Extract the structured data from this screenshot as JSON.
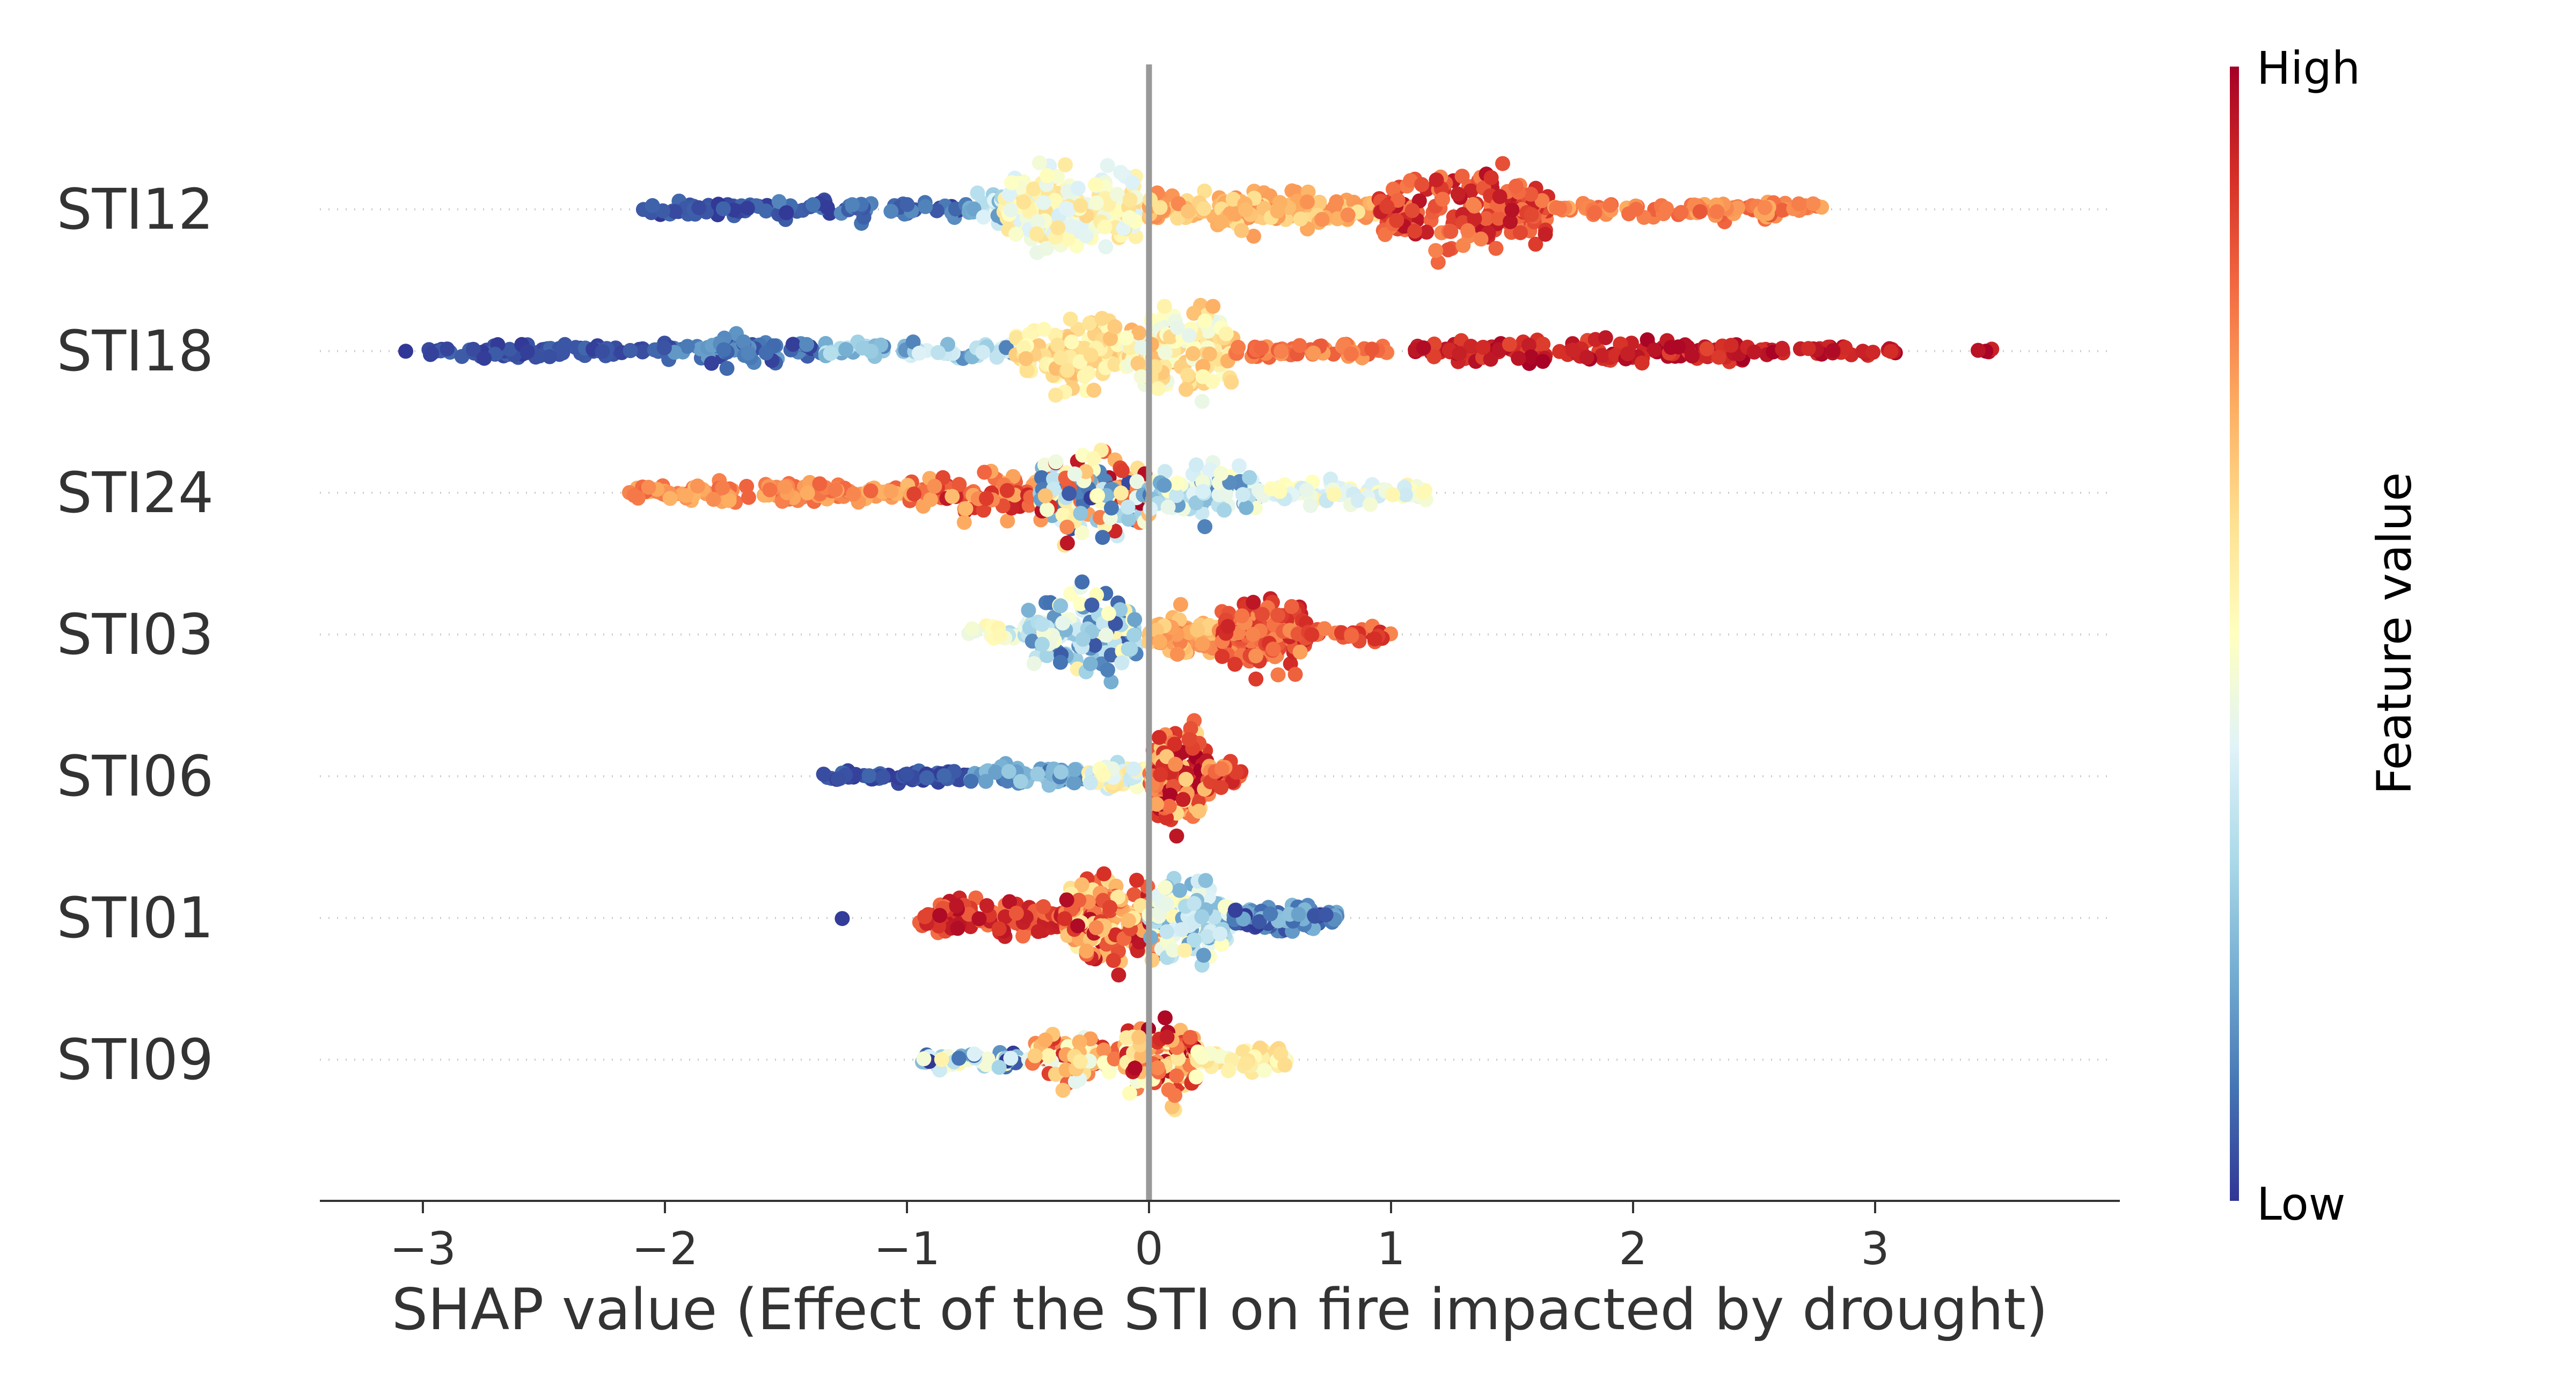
{
  "chart_data": {
    "type": "scatter",
    "subtype": "shap-beeswarm-summary",
    "title": "",
    "xlabel": "SHAP value (Effect of the STI on fire impacted by drought)",
    "ylabel": "",
    "xlim": [
      -3.42,
      3.98
    ],
    "xticks": [
      -3,
      -2,
      -1,
      0,
      1,
      2,
      3
    ],
    "xtick_labels": [
      "−3",
      "−2",
      "−1",
      "0",
      "1",
      "2",
      "3"
    ],
    "grid": "dotted horizontal guide per feature",
    "zero_line": true,
    "colormap": [
      "#313695",
      "#4575b4",
      "#74add1",
      "#abd9e9",
      "#e0f3f8",
      "#ffffbf",
      "#fee090",
      "#fdae61",
      "#f46d43",
      "#d73027",
      "#a50026"
    ],
    "colorbar": {
      "label": "Feature value",
      "high_label": "High",
      "low_label": "Low",
      "placement": "right"
    },
    "features": [
      {
        "name": "STI12",
        "segments": [
          {
            "x": [
              -2.1,
              -1.55
            ],
            "n": 45,
            "v": [
              0.0,
              0.08
            ],
            "w": 0.18
          },
          {
            "x": [
              -1.55,
              -0.75
            ],
            "n": 65,
            "v": [
              0.0,
              0.15
            ],
            "w": 0.26
          },
          {
            "x": [
              -0.75,
              -0.55
            ],
            "n": 30,
            "v": [
              0.15,
              0.45
            ],
            "w": 0.45
          },
          {
            "x": [
              -0.6,
              -0.05
            ],
            "n": 190,
            "v": [
              0.38,
              0.62
            ],
            "w": 0.95
          },
          {
            "x": [
              0.0,
              0.95
            ],
            "n": 170,
            "v": [
              0.58,
              0.76
            ],
            "w": 0.42
          },
          {
            "x": [
              0.95,
              1.65
            ],
            "n": 170,
            "v": [
              0.76,
              0.97
            ],
            "w": 0.88
          },
          {
            "x": [
              1.65,
              2.8
            ],
            "n": 90,
            "v": [
              0.7,
              0.84
            ],
            "w": 0.2
          }
        ]
      },
      {
        "name": "STI18",
        "segments": [
          {
            "x": [
              -3.08,
              -3.05
            ],
            "n": 1,
            "v": [
              0.0,
              0.02
            ],
            "w": 0.05
          },
          {
            "x": [
              -2.98,
              -2.05
            ],
            "n": 85,
            "v": [
              0.0,
              0.08
            ],
            "w": 0.14
          },
          {
            "x": [
              -2.05,
              -1.35
            ],
            "n": 75,
            "v": [
              0.0,
              0.18
            ],
            "w": 0.3
          },
          {
            "x": [
              -1.35,
              -0.55
            ],
            "n": 65,
            "v": [
              0.12,
              0.4
            ],
            "w": 0.24
          },
          {
            "x": [
              -0.55,
              -0.1
            ],
            "n": 110,
            "v": [
              0.5,
              0.68
            ],
            "w": 0.82
          },
          {
            "x": [
              -0.1,
              0.35
            ],
            "n": 140,
            "v": [
              0.42,
              0.7
            ],
            "w": 0.98
          },
          {
            "x": [
              0.35,
              1.0
            ],
            "n": 60,
            "v": [
              0.72,
              0.84
            ],
            "w": 0.18
          },
          {
            "x": [
              1.1,
              2.5
            ],
            "n": 150,
            "v": [
              0.86,
              1.0
            ],
            "w": 0.28
          },
          {
            "x": [
              2.5,
              3.1
            ],
            "n": 35,
            "v": [
              0.9,
              1.0
            ],
            "w": 0.12
          },
          {
            "x": [
              3.42,
              3.66
            ],
            "n": 4,
            "v": [
              0.92,
              1.0
            ],
            "w": 0.04
          }
        ]
      },
      {
        "name": "STI24",
        "segments": [
          {
            "x": [
              -2.15,
              -1.0
            ],
            "n": 130,
            "v": [
              0.68,
              0.82
            ],
            "w": 0.22
          },
          {
            "x": [
              -1.0,
              -0.35
            ],
            "n": 100,
            "v": [
              0.66,
              0.95
            ],
            "w": 0.52
          },
          {
            "x": [
              -0.45,
              0.0
            ],
            "n": 160,
            "v": [
              0.0,
              1.0
            ],
            "w": 0.98
          },
          {
            "x": [
              0.0,
              0.45
            ],
            "n": 80,
            "v": [
              0.1,
              0.5
            ],
            "w": 0.6
          },
          {
            "x": [
              0.45,
              1.15
            ],
            "n": 70,
            "v": [
              0.35,
              0.55
            ],
            "w": 0.25
          }
        ]
      },
      {
        "name": "STI03",
        "segments": [
          {
            "x": [
              -0.75,
              -0.45
            ],
            "n": 25,
            "v": [
              0.3,
              0.55
            ],
            "w": 0.22
          },
          {
            "x": [
              -0.5,
              -0.05
            ],
            "n": 140,
            "v": [
              0.05,
              0.55
            ],
            "w": 0.9
          },
          {
            "x": [
              0.0,
              0.3
            ],
            "n": 80,
            "v": [
              0.62,
              0.78
            ],
            "w": 0.5
          },
          {
            "x": [
              0.3,
              0.65
            ],
            "n": 150,
            "v": [
              0.72,
              0.96
            ],
            "w": 0.82
          },
          {
            "x": [
              0.65,
              1.0
            ],
            "n": 25,
            "v": [
              0.76,
              0.92
            ],
            "w": 0.22
          }
        ]
      },
      {
        "name": "STI06",
        "segments": [
          {
            "x": [
              -1.35,
              -0.75
            ],
            "n": 70,
            "v": [
              0.0,
              0.08
            ],
            "w": 0.14
          },
          {
            "x": [
              -0.75,
              -0.25
            ],
            "n": 70,
            "v": [
              0.08,
              0.28
            ],
            "w": 0.26
          },
          {
            "x": [
              -0.25,
              0.0
            ],
            "n": 60,
            "v": [
              0.3,
              0.6
            ],
            "w": 0.35
          },
          {
            "x": [
              0.0,
              0.25
            ],
            "n": 180,
            "v": [
              0.6,
              1.0
            ],
            "w": 1.05
          },
          {
            "x": [
              0.25,
              0.38
            ],
            "n": 25,
            "v": [
              0.7,
              0.98
            ],
            "w": 0.3
          }
        ]
      },
      {
        "name": "STI01",
        "segments": [
          {
            "x": [
              -1.28,
              -1.25
            ],
            "n": 1,
            "v": [
              0.0,
              0.02
            ],
            "w": 0.02
          },
          {
            "x": [
              -0.95,
              -0.35
            ],
            "n": 110,
            "v": [
              0.78,
              0.98
            ],
            "w": 0.4
          },
          {
            "x": [
              -0.35,
              0.05
            ],
            "n": 200,
            "v": [
              0.55,
              0.98
            ],
            "w": 1.0
          },
          {
            "x": [
              0.0,
              0.35
            ],
            "n": 130,
            "v": [
              0.15,
              0.55
            ],
            "w": 0.85
          },
          {
            "x": [
              0.35,
              0.78
            ],
            "n": 110,
            "v": [
              0.0,
              0.25
            ],
            "w": 0.3
          }
        ]
      },
      {
        "name": "STI09",
        "segments": [
          {
            "x": [
              -0.95,
              -0.5
            ],
            "n": 55,
            "v": [
              0.0,
              0.55
            ],
            "w": 0.2
          },
          {
            "x": [
              -0.5,
              -0.1
            ],
            "n": 90,
            "v": [
              0.4,
              0.95
            ],
            "w": 0.52
          },
          {
            "x": [
              -0.1,
              0.2
            ],
            "n": 120,
            "v": [
              0.45,
              1.0
            ],
            "w": 0.95
          },
          {
            "x": [
              0.2,
              0.58
            ],
            "n": 60,
            "v": [
              0.45,
              0.62
            ],
            "w": 0.28
          }
        ]
      }
    ]
  }
}
